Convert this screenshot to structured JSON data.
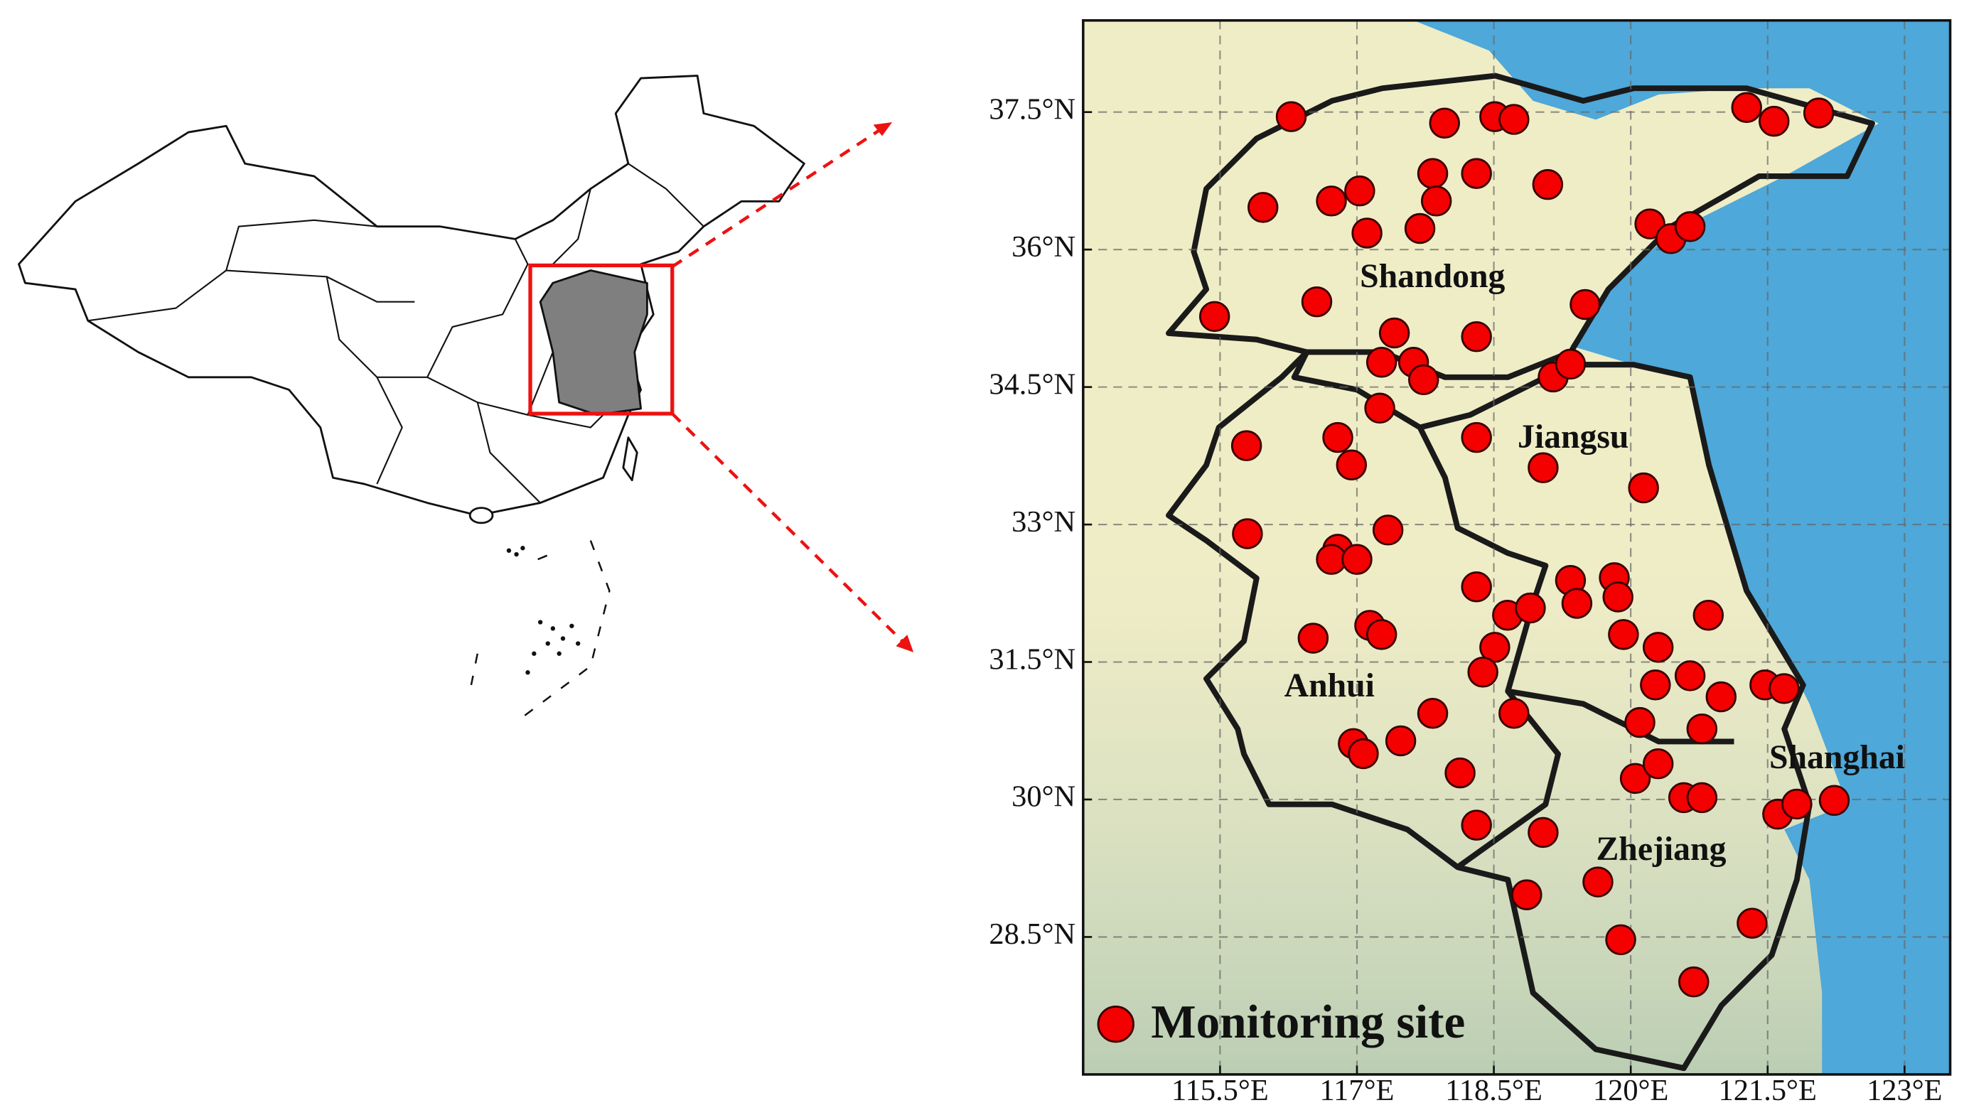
{
  "chart_data": {
    "type": "scatter",
    "annotations": [
      "Shandong",
      "Jiangsu",
      "Anhui",
      "Shanghai",
      "Zhejiang"
    ],
    "xlim": [
      114.0,
      123.5
    ],
    "ylim": [
      27.0,
      38.5
    ],
    "xticks": [
      {
        "value": 115.5,
        "label": "115.5°E"
      },
      {
        "value": 117,
        "label": "117°E"
      },
      {
        "value": 118.5,
        "label": "118.5°E"
      },
      {
        "value": 120,
        "label": "120°E"
      },
      {
        "value": 121.5,
        "label": "121.5°E"
      },
      {
        "value": 123,
        "label": "123°E"
      }
    ],
    "yticks": [
      {
        "value": 28.5,
        "label": "28.5°N"
      },
      {
        "value": 30,
        "label": "30°N"
      },
      {
        "value": 31.5,
        "label": "31.5°N"
      },
      {
        "value": 33,
        "label": "33°N"
      },
      {
        "value": 34.5,
        "label": "34.5°N"
      },
      {
        "value": 36,
        "label": "36°N"
      },
      {
        "value": 37.5,
        "label": "37.5°N"
      }
    ],
    "grid": true,
    "legend": "bottom left",
    "x": [
      116.28,
      115.97,
      116.72,
      117.03,
      117.11,
      117.83,
      118.31,
      117.87,
      117.69,
      117.96,
      118.51,
      118.72,
      119.09,
      115.44,
      116.56,
      117.41,
      118.31,
      117.27,
      117.62,
      117.73,
      119.15,
      119.34,
      119.5,
      120.21,
      120.44,
      120.65,
      121.27,
      121.57,
      122.06,
      115.79,
      116.79,
      116.94,
      117.25,
      118.31,
      119.04,
      120.14,
      115.8,
      116.79,
      116.72,
      117.0,
      117.34,
      117.14,
      117.27,
      116.52,
      118.31,
      118.65,
      118.9,
      118.51,
      118.38,
      119.34,
      119.41,
      119.82,
      119.86,
      119.92,
      120.3,
      120.65,
      120.27,
      120.85,
      120.99,
      121.47,
      121.68,
      116.96,
      117.07,
      117.48,
      117.83,
      118.72,
      118.13,
      118.31,
      119.04,
      118.86,
      119.64,
      119.89,
      120.69,
      120.1,
      120.78,
      120.05,
      120.3,
      120.58,
      120.78,
      121.61,
      121.82,
      122.23,
      121.33
    ],
    "series": [
      {
        "name": "Monitoring site",
        "color": "#f40000",
        "values": [
          37.45,
          36.46,
          36.53,
          36.64,
          36.18,
          36.83,
          36.83,
          36.53,
          36.23,
          37.38,
          37.45,
          37.42,
          36.71,
          35.27,
          35.43,
          35.09,
          35.05,
          34.77,
          34.77,
          34.58,
          34.61,
          34.75,
          35.4,
          36.28,
          36.12,
          36.25,
          37.55,
          37.4,
          37.49,
          33.86,
          33.95,
          33.65,
          34.27,
          33.95,
          33.62,
          33.4,
          32.9,
          32.73,
          32.62,
          32.62,
          32.94,
          31.9,
          31.8,
          31.76,
          32.32,
          32.01,
          32.09,
          31.66,
          31.39,
          32.39,
          32.14,
          32.42,
          32.21,
          31.8,
          31.66,
          31.35,
          31.25,
          32.01,
          31.12,
          31.25,
          31.21,
          30.61,
          30.5,
          30.64,
          30.94,
          30.94,
          30.29,
          29.72,
          29.64,
          28.96,
          29.1,
          28.47,
          28.01,
          30.84,
          30.77,
          30.23,
          30.39,
          30.02,
          30.02,
          29.84,
          29.95,
          29.99,
          28.65
        ]
      }
    ]
  }
}
